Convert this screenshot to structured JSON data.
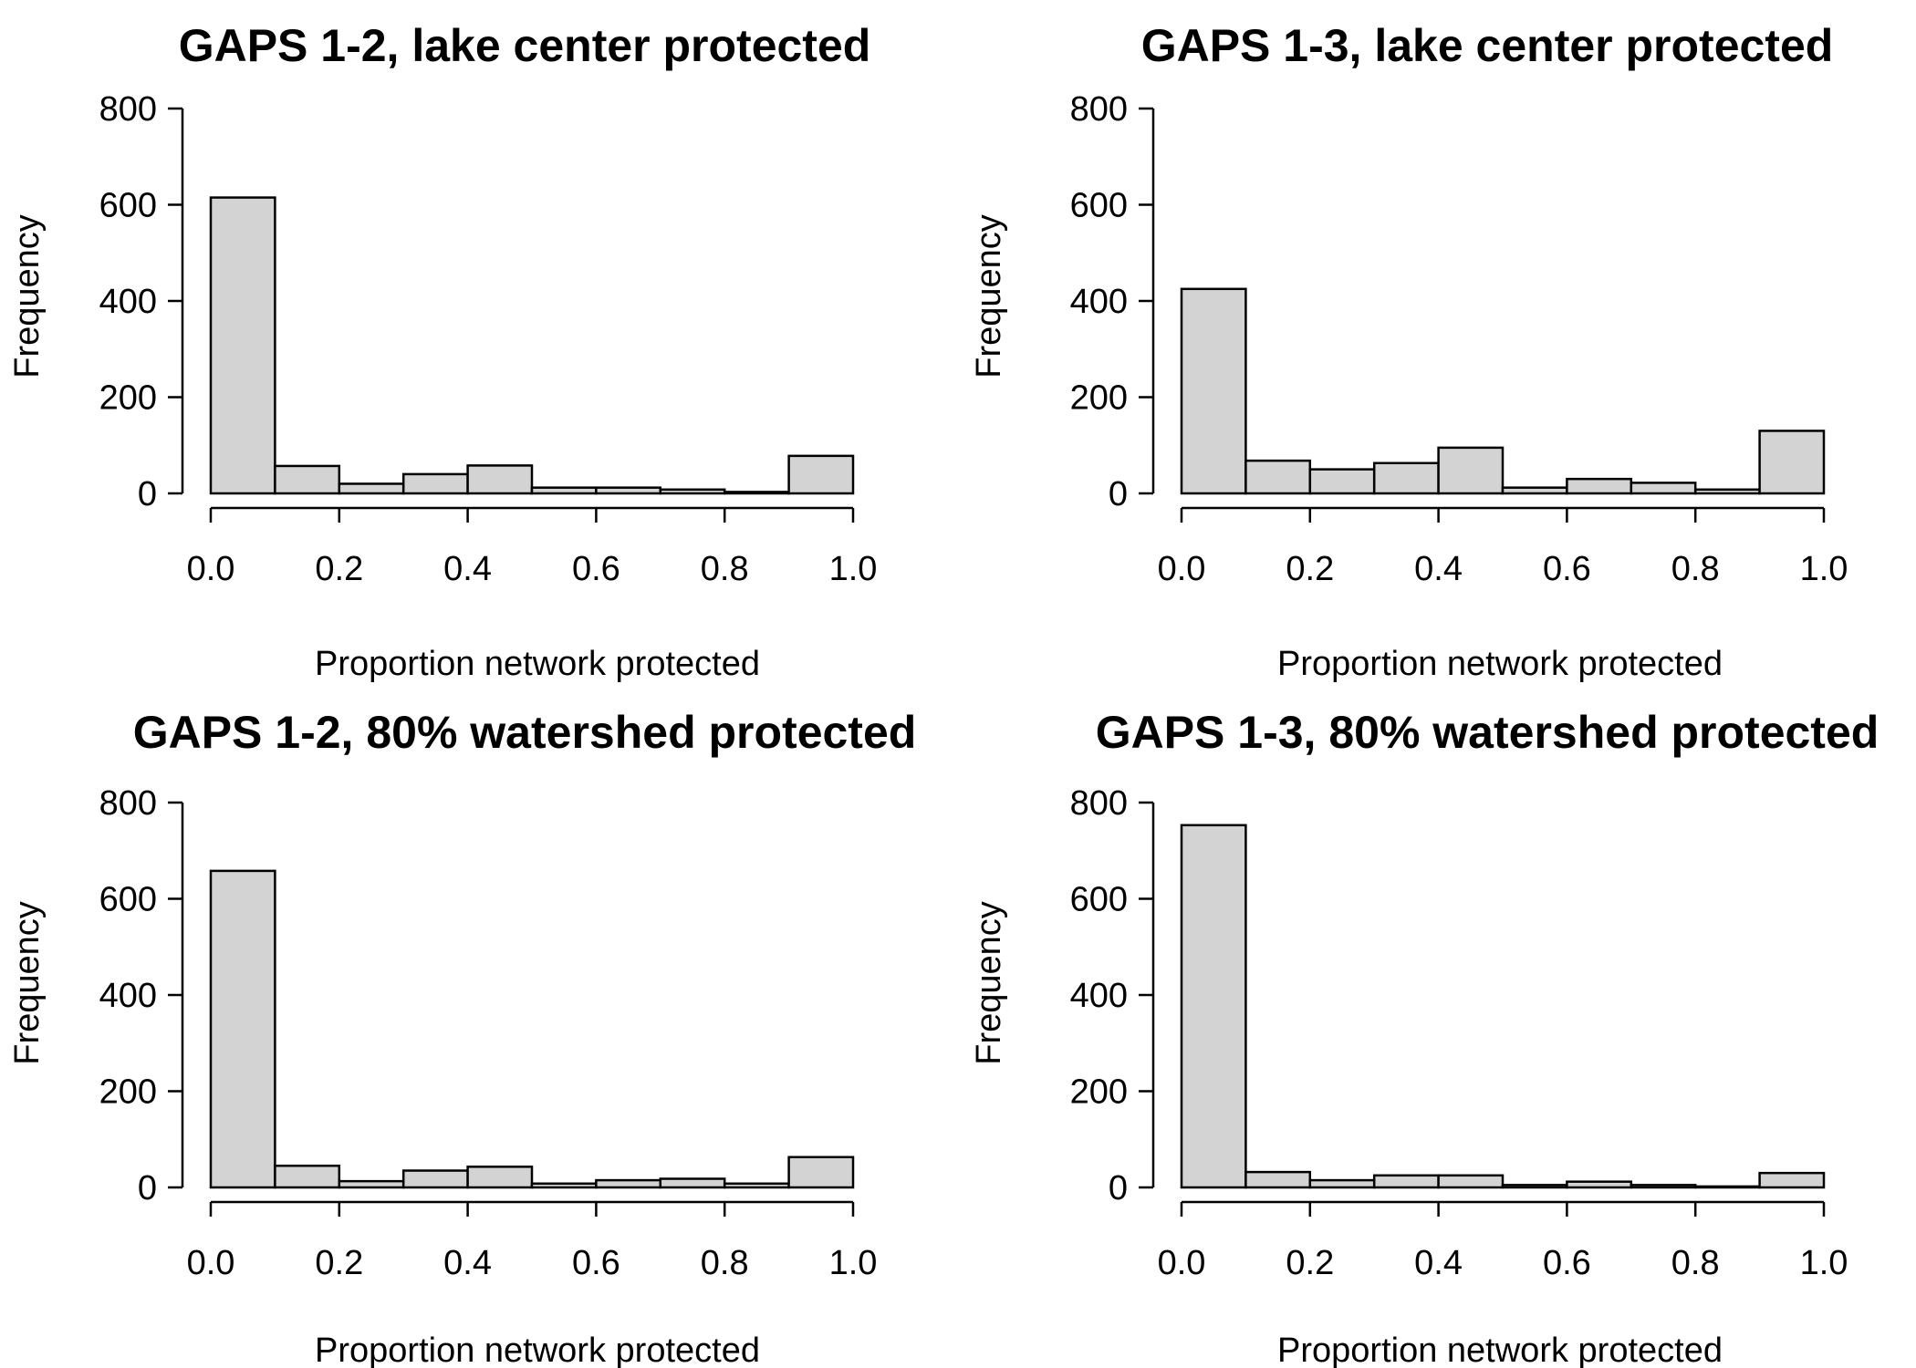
{
  "chart_data": [
    {
      "type": "bar",
      "title": "GAPS 1-2, lake center protected",
      "xlabel": "Proportion network protected",
      "ylabel": "Frequency",
      "bin_edges": [
        0.0,
        0.1,
        0.2,
        0.3,
        0.4,
        0.5,
        0.6,
        0.7,
        0.8,
        0.9,
        1.0
      ],
      "values": [
        615,
        57,
        20,
        40,
        58,
        12,
        12,
        8,
        3,
        78
      ],
      "xlim": [
        0.0,
        1.0
      ],
      "ylim": [
        0,
        800
      ],
      "xticks": [
        "0.0",
        "0.2",
        "0.4",
        "0.6",
        "0.8",
        "1.0"
      ],
      "yticks": [
        "0",
        "200",
        "400",
        "600",
        "800"
      ],
      "grid": false,
      "fill_color": "#d3d3d3"
    },
    {
      "type": "bar",
      "title": "GAPS 1-3, lake center protected",
      "xlabel": "Proportion network protected",
      "ylabel": "Frequency",
      "bin_edges": [
        0.0,
        0.1,
        0.2,
        0.3,
        0.4,
        0.5,
        0.6,
        0.7,
        0.8,
        0.9,
        1.0
      ],
      "values": [
        425,
        68,
        50,
        63,
        95,
        12,
        30,
        22,
        8,
        130
      ],
      "xlim": [
        0.0,
        1.0
      ],
      "ylim": [
        0,
        800
      ],
      "xticks": [
        "0.0",
        "0.2",
        "0.4",
        "0.6",
        "0.8",
        "1.0"
      ],
      "yticks": [
        "0",
        "200",
        "400",
        "600",
        "800"
      ],
      "grid": false,
      "fill_color": "#d3d3d3"
    },
    {
      "type": "bar",
      "title": "GAPS 1-2, 80% watershed protected",
      "xlabel": "Proportion network protected",
      "ylabel": "Frequency",
      "bin_edges": [
        0.0,
        0.1,
        0.2,
        0.3,
        0.4,
        0.5,
        0.6,
        0.7,
        0.8,
        0.9,
        1.0
      ],
      "values": [
        658,
        45,
        13,
        35,
        43,
        8,
        15,
        18,
        8,
        63
      ],
      "xlim": [
        0.0,
        1.0
      ],
      "ylim": [
        0,
        800
      ],
      "xticks": [
        "0.0",
        "0.2",
        "0.4",
        "0.6",
        "0.8",
        "1.0"
      ],
      "yticks": [
        "0",
        "200",
        "400",
        "600",
        "800"
      ],
      "grid": false,
      "fill_color": "#d3d3d3"
    },
    {
      "type": "bar",
      "title": "GAPS 1-3, 80% watershed protected",
      "xlabel": "Proportion network protected",
      "ylabel": "Frequency",
      "bin_edges": [
        0.0,
        0.1,
        0.2,
        0.3,
        0.4,
        0.5,
        0.6,
        0.7,
        0.8,
        0.9,
        1.0
      ],
      "values": [
        753,
        32,
        15,
        25,
        25,
        5,
        12,
        5,
        2,
        30
      ],
      "xlim": [
        0.0,
        1.0
      ],
      "ylim": [
        0,
        800
      ],
      "xticks": [
        "0.0",
        "0.2",
        "0.4",
        "0.6",
        "0.8",
        "1.0"
      ],
      "yticks": [
        "0",
        "200",
        "400",
        "600",
        "800"
      ],
      "grid": false,
      "fill_color": "#d3d3d3"
    }
  ]
}
